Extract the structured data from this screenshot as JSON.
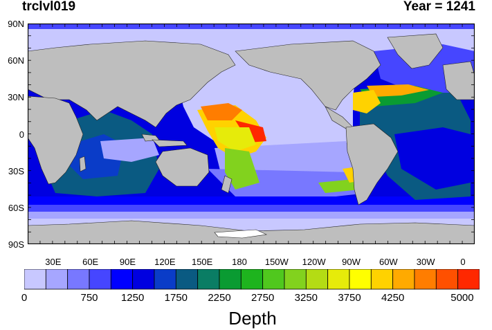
{
  "header": {
    "variable": "trclvl019",
    "year_text": "Year = 1241"
  },
  "map": {
    "projection": "cylindrical-equidistant",
    "land_color": "#BEBEBE",
    "ice_color": "#FFFFFF",
    "lat_range": [
      -90,
      90
    ],
    "lon_range": [
      0,
      360
    ],
    "lat_labels": [
      "90N",
      "60N",
      "30N",
      "0",
      "30S",
      "60S",
      "90S"
    ],
    "lat_values": [
      90,
      60,
      30,
      0,
      -30,
      -60,
      -90
    ],
    "lon_labels": [
      "30E",
      "60E",
      "90E",
      "120E",
      "150E",
      "180",
      "150W",
      "120W",
      "90W",
      "60W",
      "30W",
      "0"
    ],
    "lon_values": [
      30,
      60,
      90,
      120,
      150,
      180,
      210,
      240,
      270,
      300,
      330,
      360
    ]
  },
  "colorbar": {
    "title": "Depth",
    "colors": [
      "#C8C8FF",
      "#A6A6FF",
      "#7878FF",
      "#4646FF",
      "#0000FF",
      "#0000E0",
      "#0A3CC8",
      "#0A5A82",
      "#0A7D64",
      "#0A9B32",
      "#1EB41E",
      "#50C81E",
      "#82D21E",
      "#B4DC14",
      "#E6EB0A",
      "#FFFF00",
      "#FFD200",
      "#FFAA00",
      "#FF7D00",
      "#FF5000",
      "#FF2800"
    ],
    "labels": [
      "0",
      "750",
      "1250",
      "1750",
      "2250",
      "2750",
      "3250",
      "3750",
      "4250",
      "5000"
    ],
    "label_boxes": [
      0,
      3,
      5,
      7,
      9,
      11,
      13,
      15,
      17,
      20
    ]
  }
}
